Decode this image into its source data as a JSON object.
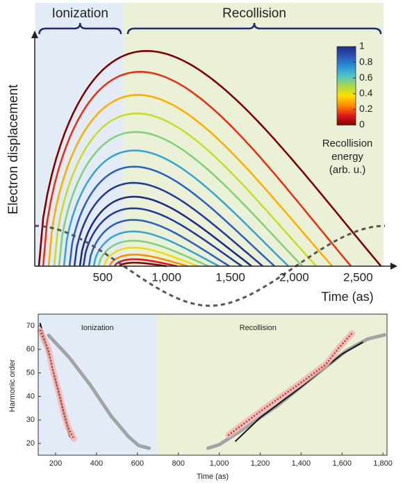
{
  "chart_data": [
    {
      "type": "trajectories",
      "ylabel": "Electron displacement",
      "xlabel": "Time (as)",
      "xlim": [
        -30,
        2700
      ],
      "ylim": [
        0,
        1
      ],
      "xticks": [
        500,
        {
          "value": 1000,
          "label": "1,000"
        },
        {
          "value": 1500,
          "label": "1,500"
        },
        {
          "value": 2000,
          "label": "2,000"
        },
        {
          "value": 2500,
          "label": "2,500"
        }
      ],
      "regions": [
        {
          "label": "Ionization",
          "range": [
            -30,
            664
          ],
          "color": "#e3ebf6"
        },
        {
          "label": "Recollision",
          "range": [
            664,
            2700
          ],
          "color": "#eaf1d6"
        }
      ],
      "colorbar": {
        "label": [
          "Recollision",
          "energy",
          "(arb. u.)"
        ],
        "lim": [
          0,
          1
        ],
        "ticks": [
          0,
          0.2,
          0.4,
          0.6,
          0.8,
          1
        ],
        "colormap": [
          "#7f0000",
          "#e31a1c",
          "#ff8c00",
          "#ffe000",
          "#a6d84a",
          "#4fc3c8",
          "#2b8fd6",
          "#2c55b8",
          "#1f2a86"
        ]
      },
      "trajectories": [
        {
          "start": 0,
          "end": 2680,
          "peak": 0.93,
          "energy": 0
        },
        {
          "start": 33,
          "end": 2445,
          "peak": 0.84,
          "energy": 0.15
        },
        {
          "start": 76,
          "end": 2298,
          "peak": 0.74,
          "energy": 0.3
        },
        {
          "start": 120,
          "end": 2173,
          "peak": 0.66,
          "energy": 0.45
        },
        {
          "start": 158,
          "end": 2064,
          "peak": 0.58,
          "energy": 0.55
        },
        {
          "start": 196,
          "end": 1955,
          "peak": 0.5,
          "energy": 0.7
        },
        {
          "start": 240,
          "end": 1846,
          "peak": 0.43,
          "energy": 0.85
        },
        {
          "start": 278,
          "end": 1754,
          "peak": 0.36,
          "energy": 0.95
        },
        {
          "start": 321,
          "end": 1667,
          "peak": 0.3,
          "energy": 1
        },
        {
          "start": 349,
          "end": 1590,
          "peak": 0.25,
          "energy": 0.95
        },
        {
          "start": 392,
          "end": 1492,
          "peak": 0.2,
          "energy": 0.85
        },
        {
          "start": 430,
          "end": 1411,
          "peak": 0.15,
          "energy": 0.7
        },
        {
          "start": 468,
          "end": 1329,
          "peak": 0.11,
          "energy": 0.55
        },
        {
          "start": 512,
          "end": 1247,
          "peak": 0.08,
          "energy": 0.4
        },
        {
          "start": 556,
          "end": 1166,
          "peak": 0.05,
          "energy": 0.25
        },
        {
          "start": 594,
          "end": 1084,
          "peak": 0.03,
          "energy": 0.12
        },
        {
          "start": 632,
          "end": 1002,
          "peak": 0.015,
          "energy": 0.02
        }
      ]
    },
    {
      "type": "line",
      "ylabel": "Harmonic order",
      "xlabel": "Time (as)",
      "xlim": [
        115,
        1820
      ],
      "ylim": [
        15,
        75
      ],
      "xticks": [
        200,
        400,
        600,
        800,
        {
          "value": 1000,
          "label": "1,000"
        },
        {
          "value": 1200,
          "label": "1,200"
        },
        {
          "value": 1400,
          "label": "1,400"
        },
        {
          "value": 1600,
          "label": "1,600"
        },
        {
          "value": 1800,
          "label": "1,800"
        }
      ],
      "yticks": [
        20,
        30,
        40,
        50,
        60,
        70
      ],
      "regions": [
        {
          "label": "Ionization",
          "range": [
            115,
            694
          ],
          "color": "#e3ebf6"
        },
        {
          "label": "Recollision",
          "range": [
            694,
            1820
          ],
          "color": "#eaf1d6"
        }
      ],
      "series": [
        {
          "color": "#a3a3a3",
          "linewidth": 5,
          "x": [
            166,
            267,
            369,
            471,
            555,
            606,
            657
          ],
          "values": [
            66,
            56.5,
            44.9,
            31.7,
            23,
            19.1,
            18
          ]
        },
        {
          "color": "#a3a3a3",
          "linewidth": 5,
          "x": [
            945,
            1000,
            1114,
            1283,
            1453,
            1622,
            1724,
            1808
          ],
          "values": [
            18,
            19.5,
            25.9,
            36,
            47.8,
            59.5,
            64.4,
            66.2
          ]
        },
        {
          "color": "#111111",
          "linewidth": 2,
          "x": [
            125,
            166,
            200,
            234,
            268
          ],
          "values": [
            71,
            58,
            46.3,
            34.6,
            23
          ]
        },
        {
          "color": "#111111",
          "linewidth": 2,
          "x": [
            1080,
            1200,
            1400,
            1600,
            1700
          ],
          "values": [
            21,
            31,
            44,
            58,
            63
          ]
        },
        {
          "color": "#2e7d32",
          "linewidth": 1.5,
          "x": [
            125,
            170,
            200,
            230,
            260,
            275
          ],
          "values": [
            67,
            56,
            48,
            38,
            28,
            22
          ]
        },
        {
          "color": "#c0392b",
          "linewidth": 2.5,
          "linestyle": "dotted",
          "x": [
            125,
            165,
            190,
            215,
            240,
            260,
            290
          ],
          "values": [
            68,
            60,
            50,
            42,
            33,
            27,
            22
          ]
        },
        {
          "color": "#c0392b",
          "linewidth": 2.5,
          "linestyle": "dotted",
          "x": [
            1046,
            1216,
            1385,
            1520,
            1588,
            1649
          ],
          "values": [
            23.6,
            34.6,
            44.9,
            53.6,
            61,
            66.8
          ]
        }
      ]
    }
  ]
}
